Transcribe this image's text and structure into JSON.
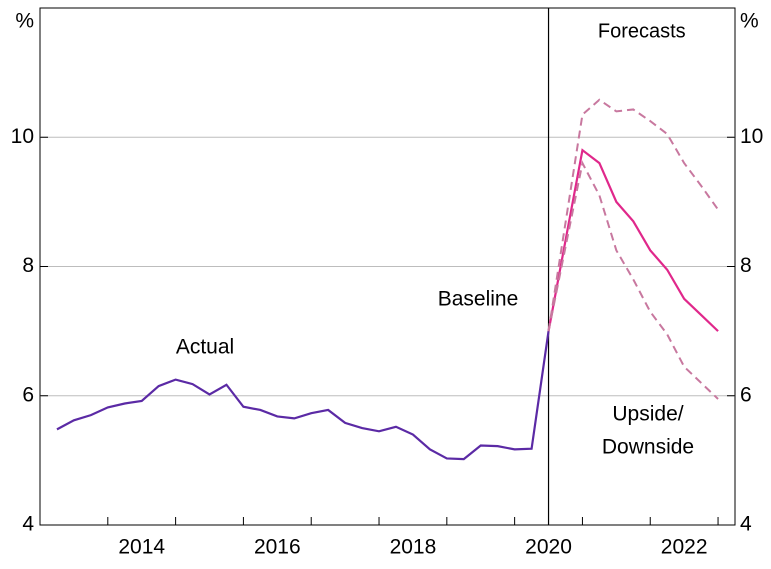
{
  "chart_data": {
    "type": "line",
    "y_unit": "%",
    "forecast_label": "Forecasts",
    "forecast_start": 2020.5,
    "xlim": [
      2013,
      2023.25
    ],
    "xticks": [
      {
        "value": 2014.5,
        "label": "2014"
      },
      {
        "value": 2016.5,
        "label": "2016"
      },
      {
        "value": 2018.5,
        "label": "2018"
      },
      {
        "value": 2020.5,
        "label": "2020"
      },
      {
        "value": 2022.5,
        "label": "2022"
      }
    ],
    "xminorticks": [
      2014,
      2015,
      2016,
      2017,
      2018,
      2019,
      2020,
      2021,
      2022,
      2023
    ],
    "ylim": [
      4,
      12
    ],
    "yticks": [
      4,
      6,
      8,
      10
    ],
    "grid": true,
    "series": [
      {
        "name": "Actual",
        "color": "#5b2aa5",
        "dash": false,
        "x": [
          2013.25,
          2013.5,
          2013.75,
          2014,
          2014.25,
          2014.5,
          2014.75,
          2015,
          2015.25,
          2015.5,
          2015.75,
          2016,
          2016.25,
          2016.5,
          2016.75,
          2017,
          2017.25,
          2017.5,
          2017.75,
          2018,
          2018.25,
          2018.5,
          2018.75,
          2019,
          2019.25,
          2019.5,
          2019.75,
          2020,
          2020.25,
          2020.5
        ],
        "values": [
          5.48,
          5.62,
          5.7,
          5.82,
          5.88,
          5.92,
          6.15,
          6.25,
          6.18,
          6.02,
          6.17,
          5.83,
          5.78,
          5.68,
          5.65,
          5.73,
          5.78,
          5.58,
          5.5,
          5.45,
          5.52,
          5.4,
          5.17,
          5.03,
          5.02,
          5.23,
          5.22,
          5.17,
          5.18,
          7.0
        ]
      },
      {
        "name": "Baseline",
        "color": "#e0288b",
        "dash": false,
        "x": [
          2020.5,
          2021,
          2021.25,
          2021.5,
          2021.75,
          2022,
          2022.25,
          2022.5,
          2022.75,
          2023
        ],
        "values": [
          7.0,
          9.8,
          9.6,
          9.0,
          8.7,
          8.25,
          7.95,
          7.5,
          7.25,
          7.0
        ]
      },
      {
        "name": [
          "Upside/",
          "Downside"
        ],
        "color": "#c8789f",
        "dash": true,
        "x": [
          2020.5,
          2021,
          2021.25,
          2021.5,
          2021.75,
          2022,
          2022.25,
          2022.5,
          2022.75,
          2023
        ],
        "values": [
          7.0,
          10.35,
          10.58,
          10.4,
          10.43,
          10.25,
          10.05,
          9.6,
          9.25,
          8.88
        ],
        "values_lower": [
          7.0,
          9.6,
          9.1,
          8.25,
          7.8,
          7.3,
          6.95,
          6.45,
          6.2,
          5.95
        ]
      }
    ]
  }
}
